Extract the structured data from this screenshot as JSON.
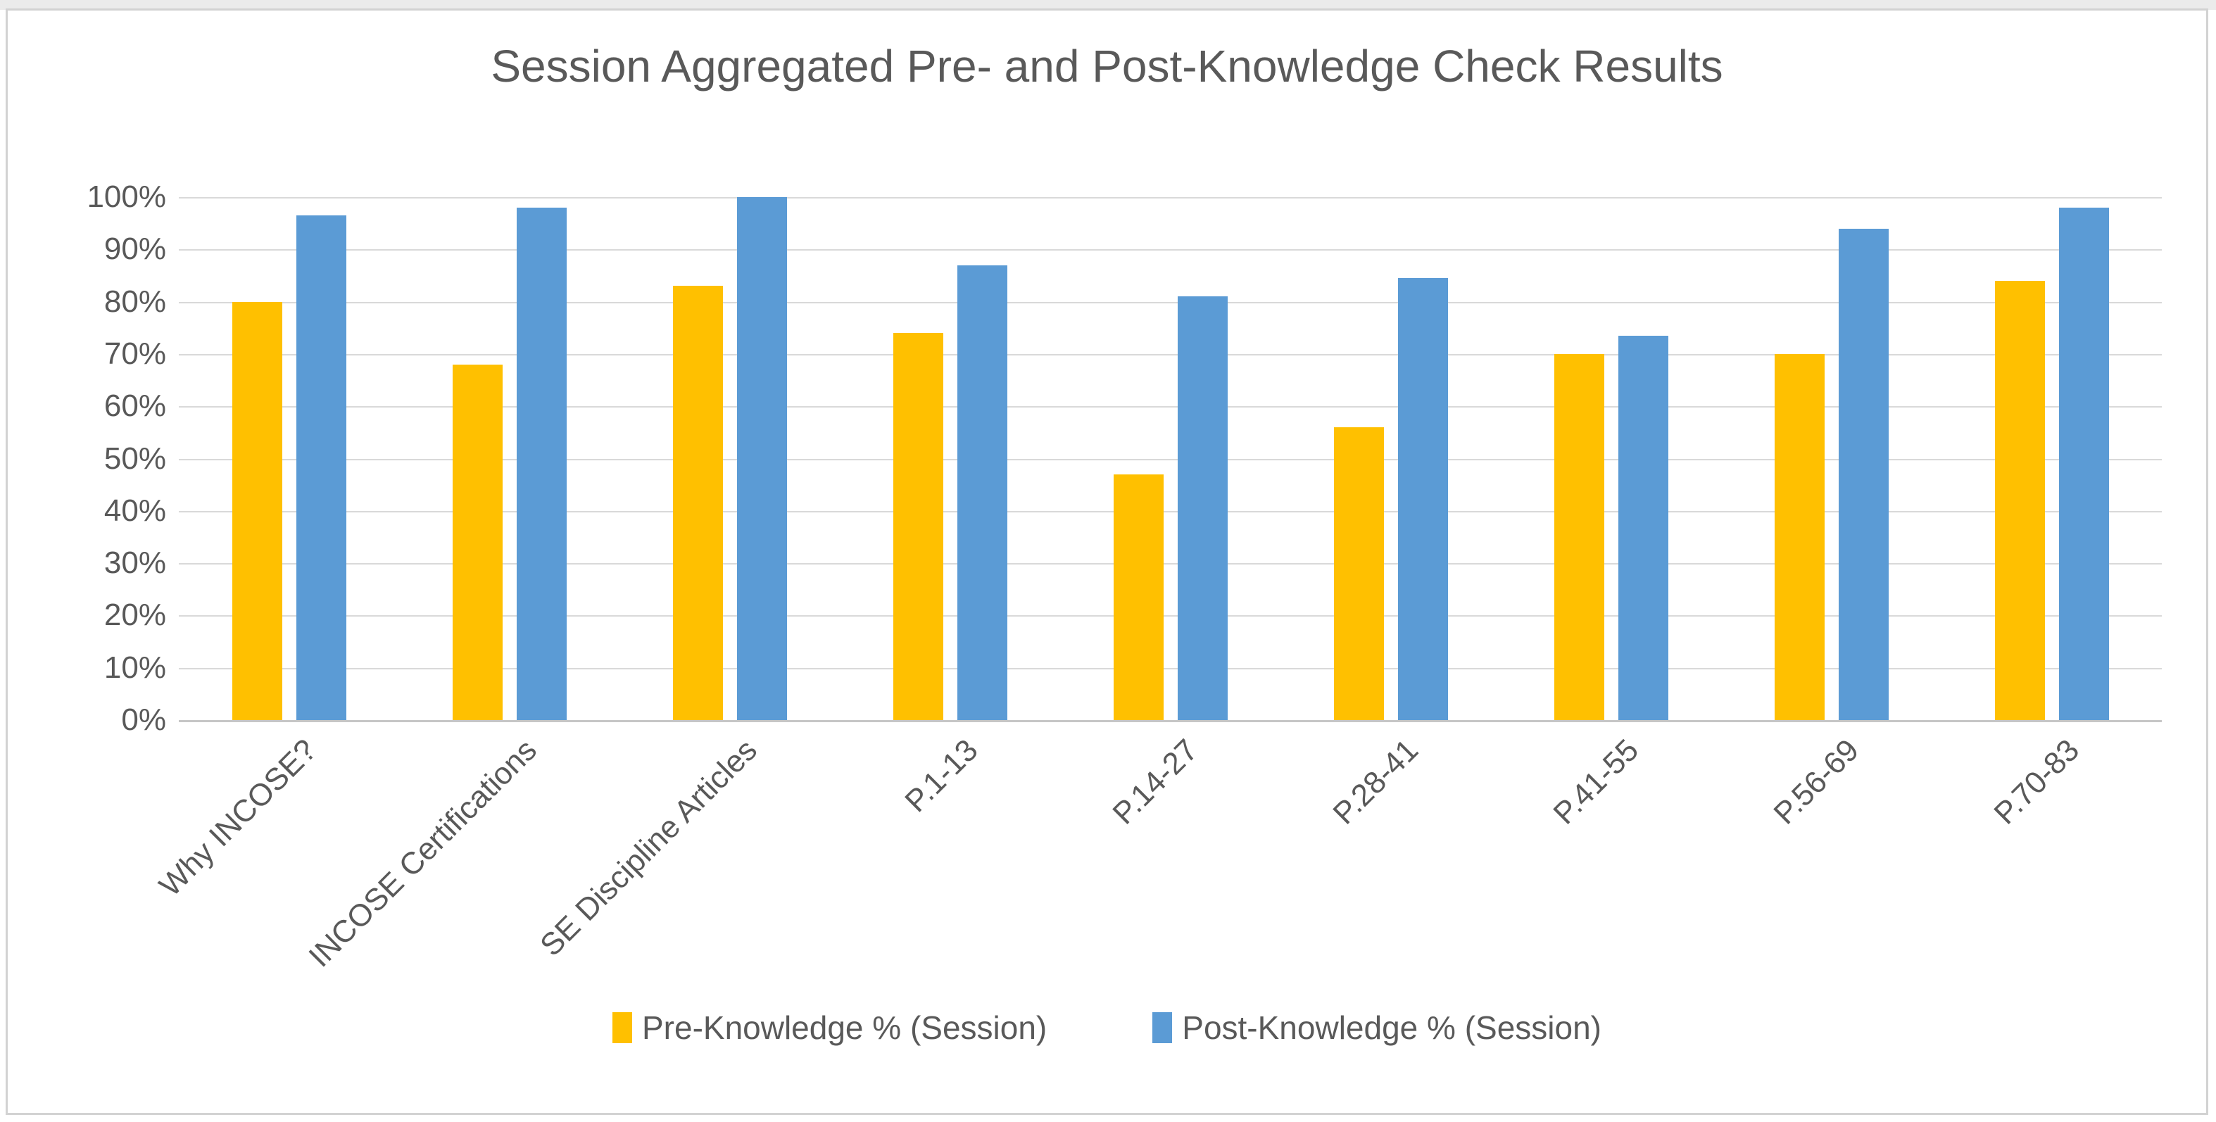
{
  "chart_data": {
    "type": "bar",
    "title": "Session Aggregated Pre- and Post-Knowledge Check Results",
    "categories": [
      "Why INCOSE?",
      "INCOSE Certifications",
      "SE Discipline Articles",
      "P.1-13",
      "P.14-27",
      "P.28-41",
      "P.41-55",
      "P.56-69",
      "P.70-83"
    ],
    "series": [
      {
        "name": "Pre-Knowledge % (Session)",
        "color": "#FFC000",
        "values": [
          80,
          68,
          83,
          74,
          47,
          56,
          70,
          70,
          84
        ]
      },
      {
        "name": "Post-Knowledge % (Session)",
        "color": "#5B9BD5",
        "values": [
          96.5,
          98,
          100,
          87,
          81,
          84.5,
          73.5,
          94,
          98
        ]
      }
    ],
    "xlabel": "",
    "ylabel": "",
    "ylim": [
      0,
      100
    ],
    "ytick_step": 10,
    "y_ticks": [
      "0%",
      "10%",
      "20%",
      "30%",
      "40%",
      "50%",
      "60%",
      "70%",
      "80%",
      "90%",
      "100%"
    ],
    "grid": true,
    "legend_position": "bottom",
    "colors": {
      "gridline": "#d9d9d9",
      "axis_line": "#c6c6c6",
      "text": "#595959",
      "background": "#ffffff"
    }
  }
}
